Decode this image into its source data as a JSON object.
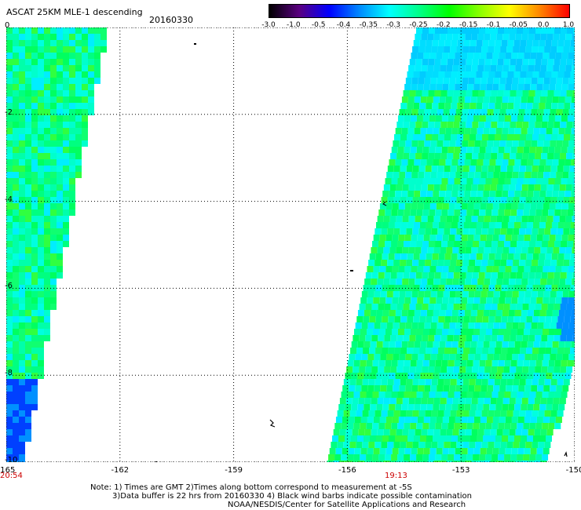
{
  "header": {
    "title": "ASCAT 25KM MLE-1 descending",
    "date": "20160330"
  },
  "colorbar": {
    "labels": [
      "-3.0",
      "-1.0",
      "-0.5",
      "-0.4",
      "-0.35",
      "-0.3",
      "-0.25",
      "-0.2",
      "-0.15",
      "-0.1",
      "-0.05",
      "0.0",
      "1.0"
    ],
    "colors": [
      "#000000",
      "#5a0080",
      "#0000ff",
      "#0088ff",
      "#00ffff",
      "#00ff88",
      "#00ff00",
      "#88ff00",
      "#ffff00",
      "#ff8800",
      "#ff0000"
    ]
  },
  "map": {
    "lon_labels": [
      "-165",
      "-162",
      "-159",
      "-156",
      "-153",
      "-150"
    ],
    "lat_labels": [
      "0",
      "-2",
      "-4",
      "-6",
      "-8",
      "-10"
    ],
    "lon_range": [
      -165,
      -150
    ],
    "lat_range": [
      0,
      -10
    ],
    "times": [
      "20:54",
      "19:13"
    ],
    "time_color": "#cc0000"
  },
  "notes": {
    "line1": "Note: 1) Times are GMT 2)Times along bottom correspond to measurement at -5S",
    "line2": "3)Data buffer is 22 hrs from 20160330 4) Black wind barbs indicate possible contamination",
    "line3": "NOAA/NESDIS/Center for Satellite Applications and Research"
  }
}
